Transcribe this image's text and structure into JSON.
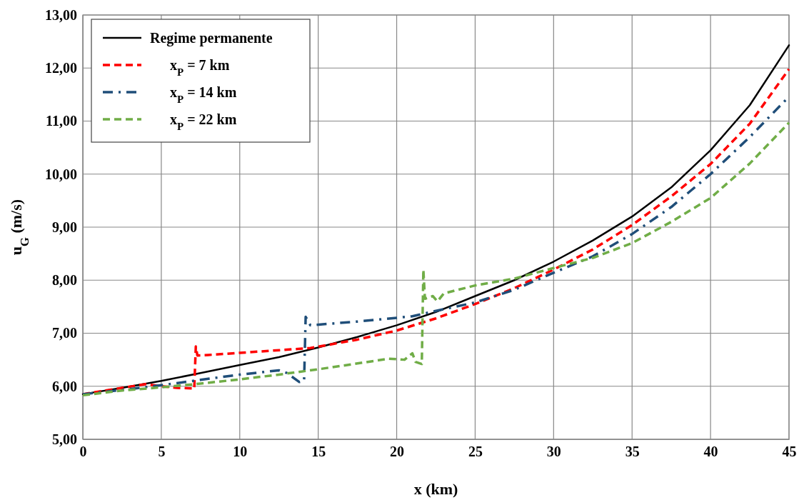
{
  "chart_data": {
    "type": "line",
    "xlabel": "x (km)",
    "ylabel": "u$_{G}$ (m/s)",
    "xlim": [
      0,
      45
    ],
    "xticks": [
      0,
      5,
      10,
      15,
      20,
      25,
      30,
      35,
      40,
      45
    ],
    "ylim": [
      5,
      13
    ],
    "yticks": [
      {
        "value": 5,
        "label": "5,00"
      },
      {
        "value": 6,
        "label": "6,00"
      },
      {
        "value": 7,
        "label": "7,00"
      },
      {
        "value": 8,
        "label": "8,00"
      },
      {
        "value": 9,
        "label": "9,00"
      },
      {
        "value": 10,
        "label": "10,00"
      },
      {
        "value": 11,
        "label": "11,00"
      },
      {
        "value": 12,
        "label": "12,00"
      },
      {
        "value": 13,
        "label": "13,00"
      }
    ],
    "grid": true,
    "legend": "top left",
    "marker": "none",
    "series": [
      {
        "name": "Regime permanente",
        "color": "#000000",
        "line_style": "solid",
        "x": [
          0,
          2.5,
          5,
          7.5,
          10,
          12.5,
          15,
          17.5,
          20,
          22.5,
          25,
          27.5,
          30,
          32.5,
          35,
          37.5,
          40,
          42.5,
          45
        ],
        "values": [
          5.85,
          5.97,
          6.1,
          6.25,
          6.4,
          6.55,
          6.73,
          6.93,
          7.15,
          7.4,
          7.7,
          8.0,
          8.35,
          8.75,
          9.2,
          9.75,
          10.45,
          11.3,
          12.43
        ]
      },
      {
        "name": "x$_{P}$ = 7 km",
        "color": "#ff0000",
        "line_style": "dashed",
        "x": [
          0,
          2.5,
          4,
          5,
          6,
          7,
          7.1,
          7.2,
          7.3,
          8,
          10,
          12,
          14,
          14.5,
          17.5,
          20,
          22.5,
          25,
          27.5,
          30,
          32.5,
          35,
          37.5,
          40,
          42.5,
          45
        ],
        "values": [
          5.85,
          5.97,
          6.04,
          6.0,
          5.97,
          5.96,
          5.95,
          6.75,
          6.58,
          6.59,
          6.63,
          6.67,
          6.71,
          6.72,
          6.88,
          7.05,
          7.28,
          7.55,
          7.85,
          8.2,
          8.58,
          9.04,
          9.58,
          10.19,
          10.95,
          11.98
        ]
      },
      {
        "name": "x$_{P}$ = 14 km",
        "color": "#1f4e79",
        "line_style": "dashdot",
        "x": [
          0,
          2.5,
          5,
          7.5,
          10,
          12.5,
          13,
          13.8,
          14.1,
          14.2,
          14.5,
          17.5,
          20,
          21,
          22.5,
          25,
          27.5,
          30,
          32.5,
          35,
          37.5,
          40,
          42.5,
          44.8
        ],
        "values": [
          5.85,
          5.93,
          6.02,
          6.12,
          6.22,
          6.3,
          6.25,
          6.08,
          6.1,
          7.31,
          7.15,
          7.22,
          7.29,
          7.32,
          7.42,
          7.58,
          7.82,
          8.14,
          8.45,
          8.87,
          9.38,
          10.0,
          10.7,
          11.4
        ]
      },
      {
        "name": "x$_{P}$ = 22 km",
        "color": "#70ad47",
        "line_style": "dashed",
        "x": [
          0,
          2.5,
          5,
          7.5,
          10,
          12.5,
          15,
          17.5,
          19.5,
          20.5,
          21,
          21.2,
          21.6,
          21.7,
          21.8,
          22.3,
          22.6,
          23,
          25,
          27.5,
          30,
          32.5,
          35,
          37.5,
          40,
          42.5,
          45
        ],
        "values": [
          5.83,
          5.92,
          5.98,
          6.05,
          6.13,
          6.22,
          6.32,
          6.43,
          6.52,
          6.5,
          6.62,
          6.46,
          6.42,
          8.2,
          7.65,
          7.7,
          7.6,
          7.75,
          7.9,
          8.03,
          8.23,
          8.42,
          8.7,
          9.1,
          9.55,
          10.2,
          10.97
        ]
      }
    ]
  }
}
